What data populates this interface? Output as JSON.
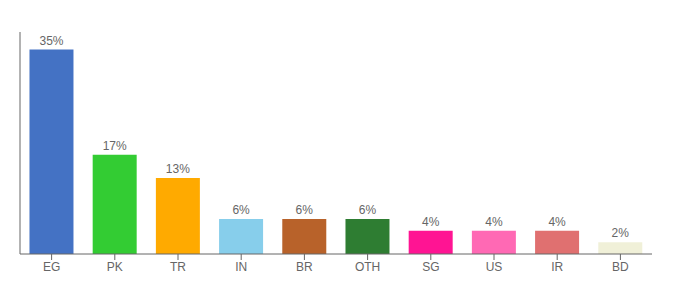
{
  "chart_data": {
    "type": "bar",
    "categories": [
      "EG",
      "PK",
      "TR",
      "IN",
      "BR",
      "OTH",
      "SG",
      "US",
      "IR",
      "BD"
    ],
    "values": [
      35,
      17,
      13,
      6,
      6,
      6,
      4,
      4,
      4,
      2
    ],
    "value_labels": [
      "35%",
      "17%",
      "13%",
      "6%",
      "6%",
      "6%",
      "4%",
      "4%",
      "4%",
      "2%"
    ],
    "colors": [
      "#4472c4",
      "#33cc33",
      "#ffaa00",
      "#87ceeb",
      "#b8622a",
      "#2e7d32",
      "#ff1493",
      "#ff69b4",
      "#e07070",
      "#f0f0d8"
    ],
    "ylim": [
      0,
      38
    ],
    "data_labels": true,
    "tick_labels": "x",
    "grid": false
  }
}
